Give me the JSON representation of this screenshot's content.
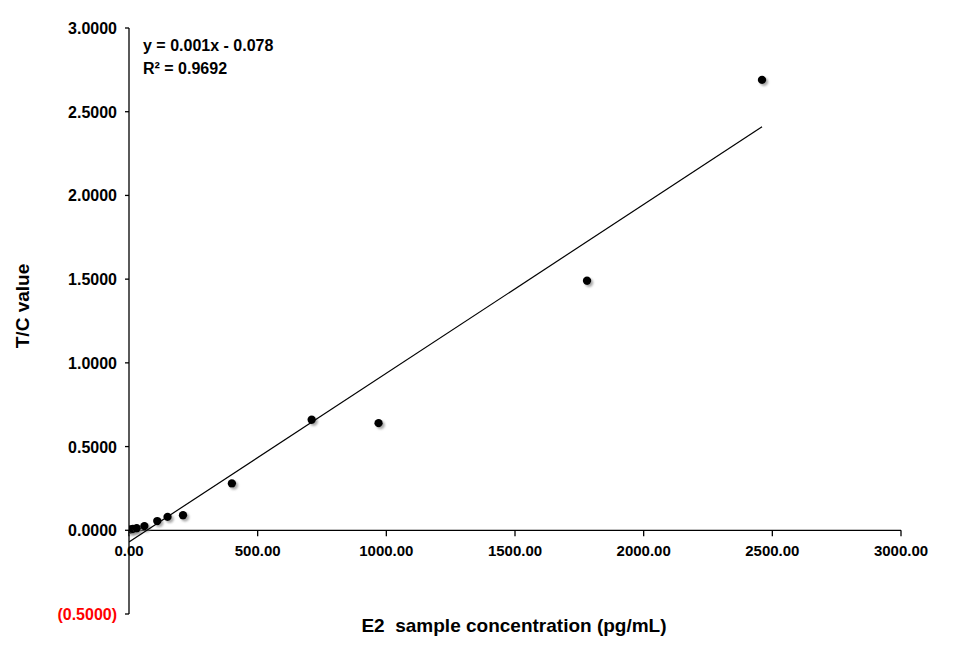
{
  "chart_data": {
    "type": "scatter",
    "x_label": "E2  sample concentration (pg/mL)",
    "y_label": "T/C value",
    "annotations": [
      "y = 0.001x - 0.078",
      "R² = 0.9692"
    ],
    "series": [
      {
        "type": "scatter",
        "marker": "circle",
        "color": "#000000",
        "x": [
          5,
          15,
          30,
          60,
          110,
          150,
          210,
          400,
          710,
          970,
          1780,
          2460
        ],
        "values": [
          0.005,
          0.008,
          0.012,
          0.025,
          0.055,
          0.08,
          0.09,
          0.28,
          0.66,
          0.64,
          1.49,
          2.69
        ]
      },
      {
        "type": "line",
        "line_style": "solid",
        "color": "#000000",
        "x": [
          0,
          2460
        ],
        "values": [
          -0.07,
          2.41
        ]
      }
    ],
    "xlim": [
      0,
      3000
    ],
    "ylim": [
      -0.5,
      3
    ],
    "xticks": [
      {
        "value": 0,
        "label": "0.00"
      },
      {
        "value": 500,
        "label": "500.00"
      },
      {
        "value": 1000,
        "label": "1000.00"
      },
      {
        "value": 1500,
        "label": "1500.00"
      },
      {
        "value": 2000,
        "label": "2000.00"
      },
      {
        "value": 2500,
        "label": "2500.00"
      },
      {
        "value": 3000,
        "label": "3000.00"
      }
    ],
    "yticks": [
      {
        "value": -0.5,
        "label": "(0.5000)"
      },
      {
        "value": 0,
        "label": "0.0000"
      },
      {
        "value": 0.5,
        "label": "0.5000"
      },
      {
        "value": 1,
        "label": "1.0000"
      },
      {
        "value": 1.5,
        "label": "1.5000"
      },
      {
        "value": 2,
        "label": "2.0000"
      },
      {
        "value": 2.5,
        "label": "2.5000"
      },
      {
        "value": 3,
        "label": "3.0000"
      }
    ],
    "grid": false
  }
}
